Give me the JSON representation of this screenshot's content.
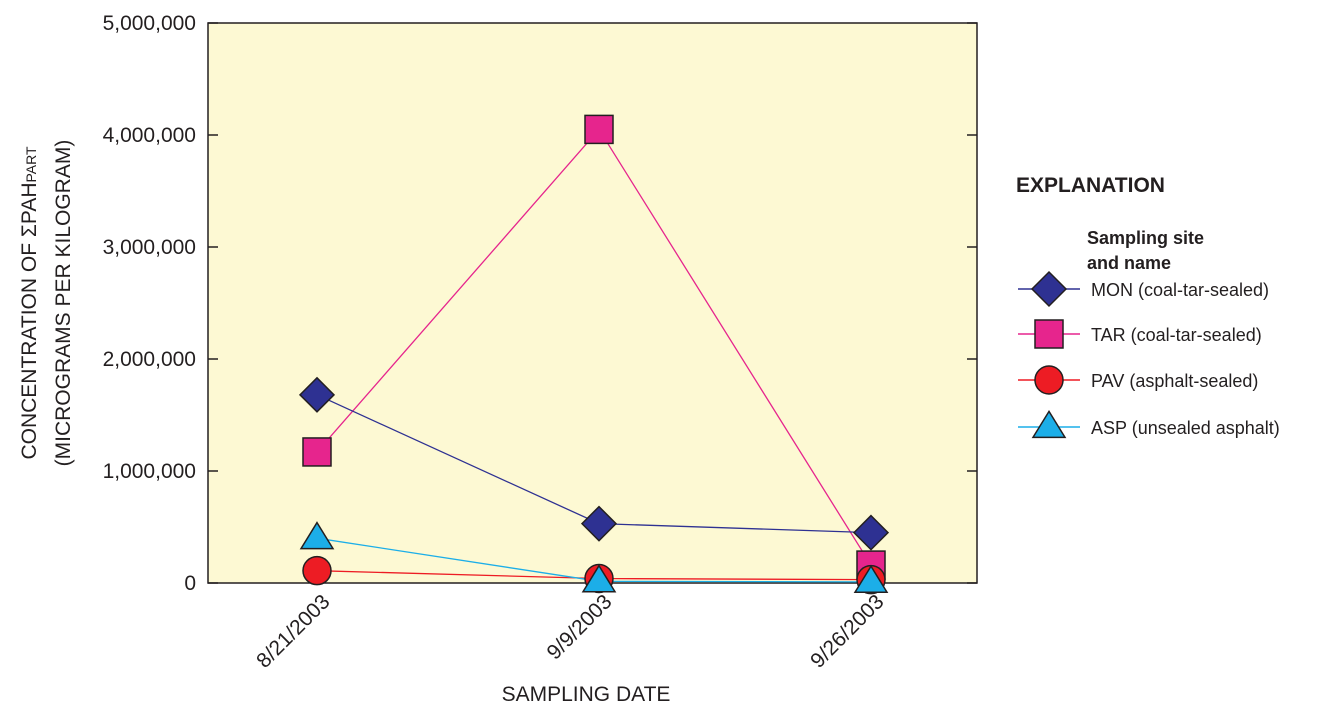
{
  "chart_data": {
    "type": "line",
    "x": [
      "8/21/2003",
      "9/9/2003",
      "9/26/2003"
    ],
    "xlabel": "SAMPLING DATE",
    "ylabel": {
      "line1_prefix": "CONCENTRATION OF ΣPAH",
      "line1_subscript": "PART",
      "line2": "(MICROGRAMS PER KILOGRAM)"
    },
    "ylim": [
      0,
      5000000
    ],
    "yticks": [
      0,
      1000000,
      2000000,
      3000000,
      4000000,
      5000000
    ],
    "ytick_labels": [
      "0",
      "1,000,000",
      "2,000,000",
      "3,000,000",
      "4,000,000",
      "5,000,000"
    ],
    "plot_background": "#fdf9d3",
    "grid": false,
    "legend": {
      "placement": "right",
      "title": "EXPLANATION",
      "subtitle_line1": "Sampling site",
      "subtitle_line2": "and name"
    },
    "series": [
      {
        "name": "MON (coal-tar-sealed)",
        "values": [
          1680000,
          530000,
          450000
        ],
        "marker": "diamond",
        "color": "#2e3192",
        "line_color": "#2e3192"
      },
      {
        "name": "TAR (coal-tar-sealed)",
        "values": [
          1170000,
          4050000,
          160000
        ],
        "marker": "square",
        "color": "#e6258d",
        "line_color": "#e6258d"
      },
      {
        "name": "PAV (asphalt-sealed)",
        "values": [
          110000,
          40000,
          30000
        ],
        "marker": "circle",
        "color": "#ed1c24",
        "line_color": "#ed1c24"
      },
      {
        "name": "ASP (unsealed asphalt)",
        "values": [
          400000,
          15000,
          10000
        ],
        "marker": "triangle",
        "color": "#1caee8",
        "line_color": "#1caee8"
      }
    ]
  }
}
